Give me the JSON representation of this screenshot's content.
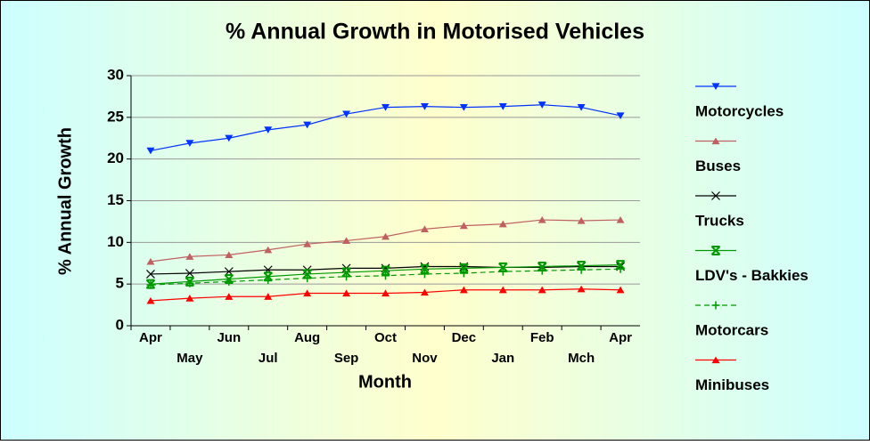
{
  "chart_data": {
    "type": "line",
    "title": "% Annual Growth in Motorised Vehicles",
    "x_label": "Month",
    "y_label": "% Annual Growth",
    "categories": [
      "Apr",
      "May",
      "Jun",
      "Jul",
      "Aug",
      "Sep",
      "Oct",
      "Nov",
      "Dec",
      "Jan",
      "Feb",
      "Mch",
      "Apr"
    ],
    "ylim": [
      0,
      30
    ],
    "yticks": [
      0,
      5,
      10,
      15,
      20,
      25,
      30
    ],
    "grid": true,
    "legend": "right",
    "series": [
      {
        "name": "Motorcycles",
        "color": "#0033ff",
        "marker": "triangle-down",
        "dashed": false,
        "values": [
          21.0,
          21.9,
          22.5,
          23.5,
          24.1,
          25.4,
          26.2,
          26.3,
          26.2,
          26.3,
          26.5,
          26.2,
          25.2
        ]
      },
      {
        "name": "Buses",
        "color": "#c06060",
        "marker": "triangle-up",
        "dashed": false,
        "values": [
          7.7,
          8.3,
          8.5,
          9.1,
          9.8,
          10.2,
          10.7,
          11.6,
          12.0,
          12.2,
          12.7,
          12.6,
          12.7
        ]
      },
      {
        "name": "Trucks",
        "color": "#000000",
        "marker": "x",
        "dashed": false,
        "values": [
          6.2,
          6.3,
          6.5,
          6.7,
          6.7,
          6.9,
          6.9,
          7.1,
          7.1,
          7.0,
          7.0,
          7.1,
          7.1
        ]
      },
      {
        "name": "LDV's - Bakkies",
        "color": "#009900",
        "marker": "x-bar",
        "dashed": false,
        "values": [
          5.0,
          5.3,
          5.6,
          5.9,
          6.2,
          6.4,
          6.6,
          6.8,
          6.9,
          7.0,
          7.1,
          7.2,
          7.3
        ]
      },
      {
        "name": "Motorcars",
        "color": "#009900",
        "marker": "plus",
        "dashed": true,
        "values": [
          4.9,
          5.1,
          5.3,
          5.5,
          5.7,
          5.9,
          6.0,
          6.2,
          6.3,
          6.5,
          6.6,
          6.7,
          6.8
        ]
      },
      {
        "name": "Minibuses",
        "color": "#ff0000",
        "marker": "triangle-up",
        "dashed": false,
        "values": [
          3.0,
          3.3,
          3.5,
          3.5,
          3.9,
          3.9,
          3.9,
          4.0,
          4.3,
          4.3,
          4.3,
          4.4,
          4.3
        ]
      }
    ]
  }
}
